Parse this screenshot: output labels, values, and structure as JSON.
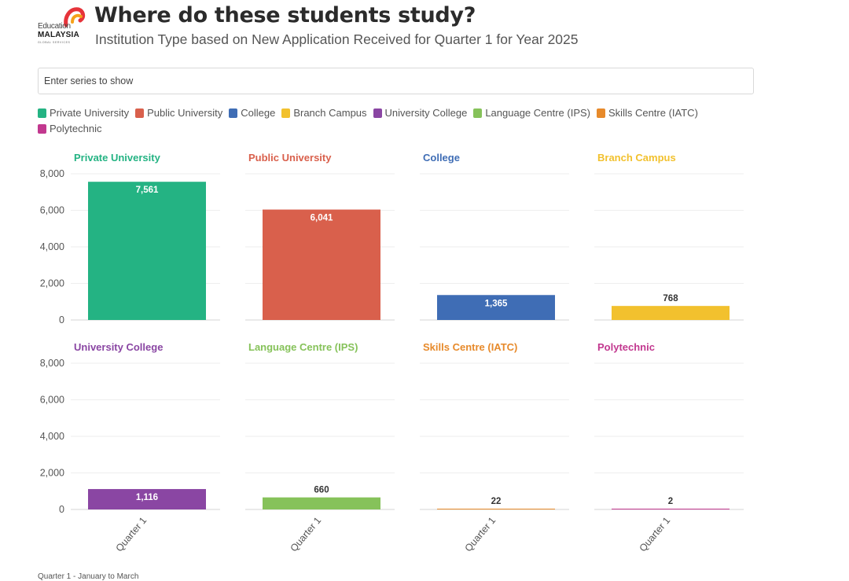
{
  "header": {
    "title": "Where do these students study?",
    "subtitle": "Institution Type based on New Application Received for Quarter 1 for Year 2025",
    "logo": {
      "line1": "Education",
      "line2": "MALAYSIA",
      "tagline": "GLOBAL SERVICES"
    }
  },
  "series_input": {
    "placeholder": "Enter series to show"
  },
  "footnote": "Quarter 1 - January to March",
  "chart_data": {
    "type": "bar",
    "layout": "small-multiples",
    "title": "Where do these students study?",
    "subtitle": "Institution Type based on New Application Received for Quarter 1 for Year 2025",
    "categories": [
      "Quarter 1"
    ],
    "ylim": [
      0,
      8000
    ],
    "yticks": [
      0,
      2000,
      4000,
      6000,
      8000
    ],
    "ytick_labels": [
      "0",
      "2,000",
      "4,000",
      "6,000",
      "8,000"
    ],
    "grid": true,
    "legend_position": "top",
    "series": [
      {
        "name": "Private University",
        "values": [
          7561
        ],
        "label": "7,561",
        "color": "#24b383"
      },
      {
        "name": "Public University",
        "values": [
          6041
        ],
        "label": "6,041",
        "color": "#d9604c"
      },
      {
        "name": "College",
        "values": [
          1365
        ],
        "label": "1,365",
        "color": "#3f6db5"
      },
      {
        "name": "Branch Campus",
        "values": [
          768
        ],
        "label": "768",
        "color": "#f2c12e"
      },
      {
        "name": "University College",
        "values": [
          1116
        ],
        "label": "1,116",
        "color": "#8a46a3"
      },
      {
        "name": "Language Centre (IPS)",
        "values": [
          660
        ],
        "label": "660",
        "color": "#86c25a"
      },
      {
        "name": "Skills Centre (IATC)",
        "values": [
          22
        ],
        "label": "22",
        "color": "#e78a2b"
      },
      {
        "name": "Polytechnic",
        "values": [
          2
        ],
        "label": "2",
        "color": "#c2388f"
      }
    ]
  }
}
